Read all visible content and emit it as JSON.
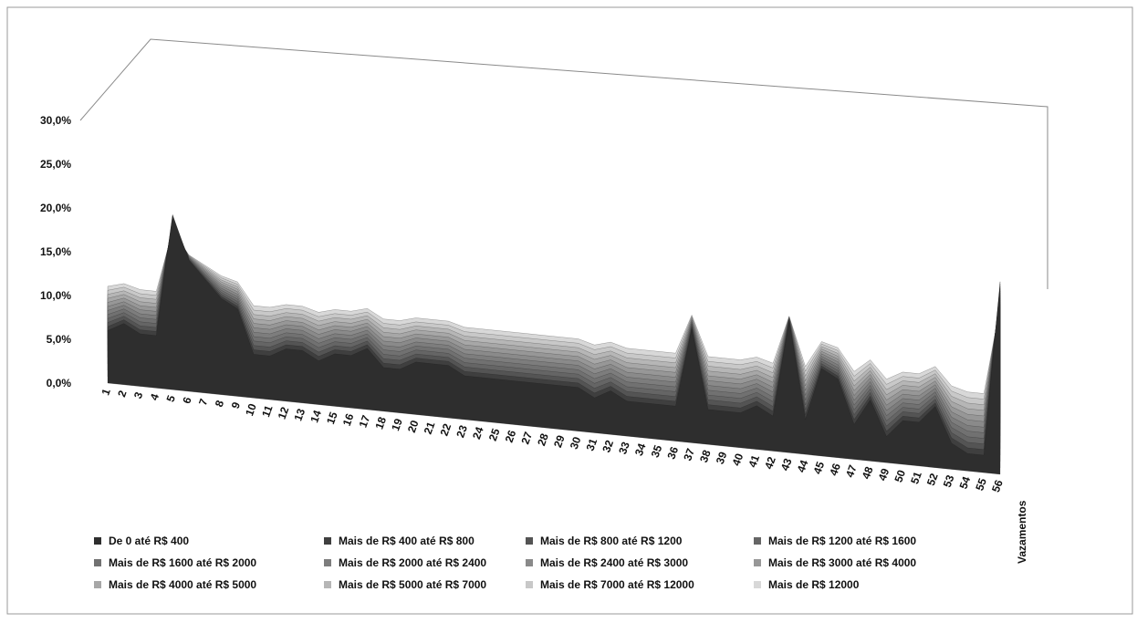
{
  "chart_data": {
    "type": "area",
    "variant": "3d-area",
    "title": "",
    "xlabel": "",
    "ylabel": "",
    "ylim": [
      0,
      30
    ],
    "y_ticks": [
      "0,0%",
      "5,0%",
      "10,0%",
      "15,0%",
      "20,0%",
      "25,0%",
      "30,0%"
    ],
    "categories": [
      "1",
      "2",
      "3",
      "4",
      "5",
      "6",
      "7",
      "8",
      "9",
      "10",
      "11",
      "12",
      "13",
      "14",
      "15",
      "16",
      "17",
      "18",
      "19",
      "20",
      "21",
      "22",
      "23",
      "24",
      "25",
      "26",
      "27",
      "28",
      "29",
      "30",
      "31",
      "32",
      "33",
      "34",
      "35",
      "36",
      "37",
      "38",
      "39",
      "40",
      "41",
      "42",
      "43",
      "44",
      "45",
      "46",
      "47",
      "48",
      "49",
      "50",
      "51",
      "52",
      "53",
      "54",
      "55",
      "56"
    ],
    "depth_axis_label": "Vazamentos",
    "legend_position": "bottom",
    "grid": false,
    "series": [
      {
        "name": "De 0 até R$ 400",
        "color": "#2e2e2e"
      },
      {
        "name": "Mais de R$ 400 até R$ 800",
        "color": "#3f3f3f"
      },
      {
        "name": "Mais de R$ 800 até R$ 1200",
        "color": "#545454"
      },
      {
        "name": "Mais de R$ 1200 até R$ 1600",
        "color": "#656565"
      },
      {
        "name": "Mais de R$ 1600 até R$ 2000",
        "color": "#717171"
      },
      {
        "name": "Mais de R$ 2000 até R$ 2400",
        "color": "#7d7d7d"
      },
      {
        "name": "Mais de R$ 2400 até R$ 3000",
        "color": "#8a8a8a"
      },
      {
        "name": "Mais de R$ 3000 até R$ 4000",
        "color": "#979797"
      },
      {
        "name": "Mais de R$ 4000 até R$ 5000",
        "color": "#a7a7a7"
      },
      {
        "name": "Mais de R$ 5000 até R$ 7000",
        "color": "#b6b6b6"
      },
      {
        "name": "Mais de R$ 7000 até R$ 12000",
        "color": "#c8c8c8"
      },
      {
        "name": "Mais de R$ 12000",
        "color": "#d8d8d8"
      }
    ],
    "profile_values": [
      6,
      7,
      6,
      6,
      20,
      15,
      13,
      11,
      10,
      5,
      5,
      6,
      6,
      5,
      6,
      6,
      7,
      5,
      5,
      6,
      6,
      6,
      5,
      5,
      5,
      5,
      5,
      5,
      5,
      5,
      4,
      5,
      4,
      4,
      4,
      4,
      13,
      4,
      4,
      4,
      5,
      4,
      15,
      4,
      10,
      9,
      4,
      7,
      3,
      5,
      5,
      7,
      3,
      2,
      2,
      22
    ]
  }
}
